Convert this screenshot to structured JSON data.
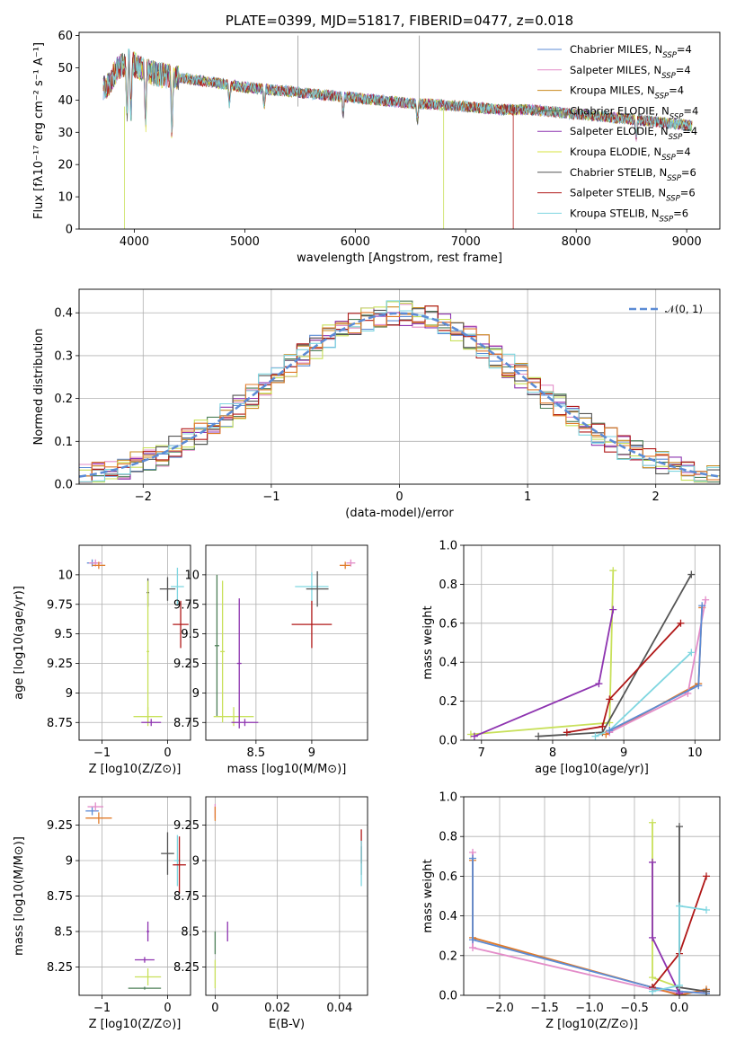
{
  "chart_data": [
    {
      "id": "spectrum",
      "type": "line",
      "title": "PLATE=0399, MJD=51817, FIBERID=0477, z=0.018",
      "xlabel": "wavelength [Angstrom, rest frame]",
      "ylabel": "Flux [fλ10⁻¹⁷ erg cm⁻² s⁻¹ A⁻¹]",
      "xlim": [
        3500,
        9300
      ],
      "ylim": [
        0,
        61
      ],
      "xticks": [
        4000,
        5000,
        6000,
        7000,
        8000,
        9000
      ],
      "yticks": [
        0,
        10,
        20,
        30,
        40,
        50,
        60
      ],
      "legend_position": "top-right",
      "spectrum_shape": {
        "x": [
          3750,
          3850,
          3950,
          4050,
          4200,
          4400,
          4600,
          4800,
          5000,
          5300,
          5600,
          5900,
          6200,
          6500,
          6800,
          7000,
          7300,
          7600,
          7900,
          8200,
          8500,
          8800,
          9050
        ],
        "y": [
          44,
          50,
          52,
          50,
          48,
          47,
          46,
          45,
          44,
          43,
          42,
          41,
          40,
          39,
          38.5,
          38,
          37,
          37,
          36,
          35,
          34,
          33,
          32
        ]
      },
      "series": [
        {
          "name": "Chabrier MILES, N_SSP=4",
          "color": "#5b8bd5"
        },
        {
          "name": "Salpeter MILES, N_SSP=4",
          "color": "#e38dc9"
        },
        {
          "name": "Kroupa MILES, N_SSP=4",
          "color": "#c98a1e"
        },
        {
          "name": "Chabrier ELODIE, N_SSP=4",
          "color": "#4d7f57"
        },
        {
          "name": "Salpeter ELODIE, N_SSP=4",
          "color": "#8e34b0"
        },
        {
          "name": "Kroupa ELODIE, N_SSP=4",
          "color": "#d7e33f"
        },
        {
          "name": "Chabrier STELIB, N_SSP=6",
          "color": "#555555"
        },
        {
          "name": "Salpeter STELIB, N_SSP=6",
          "color": "#b01818"
        },
        {
          "name": "Kroupa STELIB, N_SSP=6",
          "color": "#7fd6e0"
        }
      ]
    },
    {
      "id": "residuals",
      "type": "step",
      "xlabel": "(data-model)/error",
      "ylabel": "Normed distribution",
      "xlim": [
        -2.5,
        2.5
      ],
      "ylim": [
        0,
        0.455
      ],
      "xticks": [
        -2,
        -1,
        0,
        1,
        2
      ],
      "yticks": [
        0.0,
        0.1,
        0.2,
        0.3,
        0.4
      ],
      "reference": {
        "label": "𝒩(0, 1)",
        "color": "#5b8bd5",
        "mean": 0,
        "sigma": 1
      },
      "series_colors": [
        "#5b8bd5",
        "#e38dc9",
        "#c98a1e",
        "#4d7f57",
        "#8e34b0",
        "#c8e05a",
        "#555555",
        "#b01818",
        "#7fd6e0",
        "#e07b2a"
      ]
    },
    {
      "id": "Z_vs_age",
      "type": "errorbar",
      "xlabel": "Z [log10(Z/Z⊙)]",
      "ylabel": "age [log10(age/yr)]",
      "xlim": [
        -1.35,
        0.35
      ],
      "ylim": [
        8.6,
        10.25
      ],
      "xticks": [
        -1,
        0
      ],
      "yticks": [
        8.75,
        9.0,
        9.25,
        9.5,
        9.75,
        10.0
      ],
      "points": [
        {
          "x": -1.15,
          "y": 10.1,
          "xerr": 0.08,
          "yerr": 0.03,
          "color": "#5b8bd5"
        },
        {
          "x": -1.1,
          "y": 10.1,
          "xerr": 0.1,
          "yerr": 0.03,
          "color": "#e38dc9"
        },
        {
          "x": -1.05,
          "y": 10.08,
          "xerr": 0.1,
          "yerr": 0.03,
          "color": "#e07b2a"
        },
        {
          "x": -0.3,
          "y": 9.85,
          "xerr": 0.02,
          "yerr": 0.12,
          "color": "#555555"
        },
        {
          "x": -0.3,
          "y": 9.35,
          "xerr": 0.02,
          "yerr": 0.6,
          "color": "#c8e05a"
        },
        {
          "x": -0.3,
          "y": 8.8,
          "xerr": 0.22,
          "yerr": 0.08,
          "color": "#c8e05a"
        },
        {
          "x": -0.25,
          "y": 8.75,
          "xerr": 0.15,
          "yerr": 0.03,
          "color": "#8e34b0"
        },
        {
          "x": 0.0,
          "y": 9.88,
          "xerr": 0.12,
          "yerr": 0.1,
          "color": "#555555"
        },
        {
          "x": 0.15,
          "y": 9.9,
          "xerr": 0.1,
          "yerr": 0.16,
          "color": "#7fd6e0"
        },
        {
          "x": 0.2,
          "y": 9.58,
          "xerr": 0.12,
          "yerr": 0.2,
          "color": "#b01818"
        }
      ]
    },
    {
      "id": "mass_vs_age",
      "type": "errorbar",
      "xlabel": "mass [log10(M/M⊙)]",
      "ylabel": "",
      "xlim": [
        8.05,
        9.5
      ],
      "ylim": [
        8.6,
        10.25
      ],
      "xticks": [
        8.5,
        9.0
      ],
      "yticks": [
        8.75,
        9.0,
        9.25,
        9.5,
        9.75,
        10.0
      ],
      "points": [
        {
          "x": 8.15,
          "y": 9.4,
          "xerr": 0.02,
          "yerr": 0.6,
          "color": "#4d7f57"
        },
        {
          "x": 8.2,
          "y": 9.35,
          "xerr": 0.02,
          "yerr": 0.6,
          "color": "#c8e05a"
        },
        {
          "x": 8.3,
          "y": 8.8,
          "xerr": 0.18,
          "yerr": 0.08,
          "color": "#c8e05a"
        },
        {
          "x": 8.35,
          "y": 9.25,
          "xerr": 0.02,
          "yerr": 0.55,
          "color": "#8e34b0"
        },
        {
          "x": 8.4,
          "y": 8.75,
          "xerr": 0.12,
          "yerr": 0.03,
          "color": "#8e34b0"
        },
        {
          "x": 9.0,
          "y": 9.9,
          "xerr": 0.15,
          "yerr": 0.12,
          "color": "#7fd6e0"
        },
        {
          "x": 9.05,
          "y": 9.88,
          "xerr": 0.1,
          "yerr": 0.15,
          "color": "#555555"
        },
        {
          "x": 9.0,
          "y": 9.58,
          "xerr": 0.18,
          "yerr": 0.2,
          "color": "#b01818"
        },
        {
          "x": 9.3,
          "y": 10.08,
          "xerr": 0.05,
          "yerr": 0.03,
          "color": "#e07b2a"
        },
        {
          "x": 9.35,
          "y": 10.1,
          "xerr": 0.04,
          "yerr": 0.03,
          "color": "#e38dc9"
        }
      ]
    },
    {
      "id": "age_vs_weight",
      "type": "line",
      "xlabel": "age [log10(age/yr)]",
      "ylabel": "mass weight",
      "xlim": [
        6.75,
        10.35
      ],
      "ylim": [
        0,
        1
      ],
      "xticks": [
        7,
        8,
        9,
        10
      ],
      "yticks": [
        0.0,
        0.2,
        0.4,
        0.6,
        0.8,
        1.0
      ],
      "series": [
        {
          "color": "#c8e05a",
          "x": [
            6.85,
            8.8,
            8.85
          ],
          "y": [
            0.03,
            0.09,
            0.87
          ]
        },
        {
          "color": "#8e34b0",
          "x": [
            6.9,
            8.65,
            8.85
          ],
          "y": [
            0.02,
            0.29,
            0.67
          ]
        },
        {
          "color": "#555555",
          "x": [
            7.8,
            8.7,
            9.95
          ],
          "y": [
            0.02,
            0.04,
            0.85
          ]
        },
        {
          "color": "#b01818",
          "x": [
            8.2,
            8.7,
            8.8,
            9.8
          ],
          "y": [
            0.04,
            0.07,
            0.21,
            0.6
          ]
        },
        {
          "color": "#7fd6e0",
          "x": [
            8.6,
            8.8,
            9.95
          ],
          "y": [
            0.02,
            0.05,
            0.45
          ]
        },
        {
          "color": "#e07b2a",
          "x": [
            8.75,
            10.05,
            10.1
          ],
          "y": [
            0.03,
            0.29,
            0.68
          ]
        },
        {
          "color": "#e38dc9",
          "x": [
            8.8,
            9.9,
            10.15
          ],
          "y": [
            0.04,
            0.24,
            0.72
          ]
        },
        {
          "color": "#5b8bd5",
          "x": [
            8.8,
            10.05,
            10.1
          ],
          "y": [
            0.05,
            0.28,
            0.69
          ]
        }
      ]
    },
    {
      "id": "Z_vs_mass",
      "type": "errorbar",
      "xlabel": "Z [log10(Z/Z⊙)]",
      "ylabel": "mass [log10(M/M⊙)]",
      "xlim": [
        -1.35,
        0.35
      ],
      "ylim": [
        8.05,
        9.45
      ],
      "xticks": [
        -1,
        0
      ],
      "yticks": [
        8.25,
        8.5,
        8.75,
        9.0,
        9.25
      ],
      "points": [
        {
          "x": -1.15,
          "y": 9.35,
          "xerr": 0.1,
          "yerr": 0.03,
          "color": "#5b8bd5"
        },
        {
          "x": -1.1,
          "y": 9.38,
          "xerr": 0.12,
          "yerr": 0.03,
          "color": "#e38dc9"
        },
        {
          "x": -1.05,
          "y": 9.3,
          "xerr": 0.2,
          "yerr": 0.04,
          "color": "#e07b2a"
        },
        {
          "x": -0.3,
          "y": 8.5,
          "xerr": 0.02,
          "yerr": 0.07,
          "color": "#8e34b0"
        },
        {
          "x": -0.35,
          "y": 8.3,
          "xerr": 0.15,
          "yerr": 0.02,
          "color": "#8e34b0"
        },
        {
          "x": -0.3,
          "y": 8.18,
          "xerr": 0.2,
          "yerr": 0.06,
          "color": "#c8e05a"
        },
        {
          "x": -0.35,
          "y": 8.1,
          "xerr": 0.25,
          "yerr": 0.01,
          "color": "#4d7f57"
        },
        {
          "x": 0.0,
          "y": 9.05,
          "xerr": 0.1,
          "yerr": 0.15,
          "color": "#555555"
        },
        {
          "x": 0.15,
          "y": 9.0,
          "xerr": 0.05,
          "yerr": 0.18,
          "color": "#7fd6e0"
        },
        {
          "x": 0.18,
          "y": 8.97,
          "xerr": 0.1,
          "yerr": 0.2,
          "color": "#b01818"
        }
      ]
    },
    {
      "id": "ebv_vs_mass",
      "type": "errorbar",
      "xlabel": "E(B-V)",
      "ylabel": "",
      "xlim": [
        -0.003,
        0.049
      ],
      "ylim": [
        8.05,
        9.45
      ],
      "xticks": [
        0.0,
        0.02,
        0.04
      ],
      "yticks": [
        8.25,
        8.5,
        8.75,
        9.0,
        9.25
      ],
      "points": [
        {
          "x": 0.0,
          "y": 9.35,
          "xerr": 0,
          "yerr": 0.05,
          "color": "#e38dc9"
        },
        {
          "x": 0.0,
          "y": 9.33,
          "xerr": 0,
          "yerr": 0.05,
          "color": "#e07b2a"
        },
        {
          "x": 0.0,
          "y": 8.42,
          "xerr": 0,
          "yerr": 0.08,
          "color": "#4d7f57"
        },
        {
          "x": 0.0,
          "y": 8.2,
          "xerr": 0,
          "yerr": 0.1,
          "color": "#c8e05a"
        },
        {
          "x": 0.004,
          "y": 8.5,
          "xerr": 0,
          "yerr": 0.07,
          "color": "#8e34b0"
        },
        {
          "x": 0.047,
          "y": 9.1,
          "xerr": 0,
          "yerr": 0.12,
          "color": "#b01818"
        },
        {
          "x": 0.047,
          "y": 9.0,
          "xerr": 0,
          "yerr": 0.1,
          "color": "#555555"
        },
        {
          "x": 0.047,
          "y": 8.98,
          "xerr": 0,
          "yerr": 0.16,
          "color": "#7fd6e0"
        }
      ]
    },
    {
      "id": "Z_vs_weight",
      "type": "line",
      "xlabel": "Z [log10(Z/Z⊙)]",
      "ylabel": "mass weight",
      "xlim": [
        -2.4,
        0.45
      ],
      "ylim": [
        0,
        1
      ],
      "xticks": [
        -2.0,
        -1.5,
        -1.0,
        -0.5,
        0.0
      ],
      "yticks": [
        0.0,
        0.2,
        0.4,
        0.6,
        0.8,
        1.0
      ],
      "series": [
        {
          "color": "#e38dc9",
          "x": [
            -2.3,
            -2.3,
            -0.3,
            0.0,
            0.3
          ],
          "y": [
            0.72,
            0.24,
            0.03,
            0.01,
            0.02
          ]
        },
        {
          "color": "#e07b2a",
          "x": [
            -2.3,
            -2.3,
            -0.3,
            0.0,
            0.3
          ],
          "y": [
            0.68,
            0.29,
            0.04,
            0.0,
            0.03
          ]
        },
        {
          "color": "#5b8bd5",
          "x": [
            -2.3,
            -2.3,
            -0.3,
            0.0,
            0.3
          ],
          "y": [
            0.69,
            0.28,
            0.04,
            0.02,
            0.01
          ]
        },
        {
          "color": "#c8e05a",
          "x": [
            -0.3,
            -0.3,
            0.0
          ],
          "y": [
            0.87,
            0.09,
            0.04
          ]
        },
        {
          "color": "#8e34b0",
          "x": [
            -0.3,
            -0.3,
            0.0
          ],
          "y": [
            0.67,
            0.29,
            0.01
          ]
        },
        {
          "color": "#555555",
          "x": [
            0.0,
            0.0,
            0.3
          ],
          "y": [
            0.85,
            0.04,
            0.02
          ]
        },
        {
          "color": "#b01818",
          "x": [
            -0.3,
            0.0,
            0.3
          ],
          "y": [
            0.04,
            0.21,
            0.6
          ]
        },
        {
          "color": "#7fd6e0",
          "x": [
            -0.3,
            0.0,
            0.0,
            0.3
          ],
          "y": [
            0.02,
            0.05,
            0.45,
            0.43
          ]
        }
      ]
    }
  ]
}
